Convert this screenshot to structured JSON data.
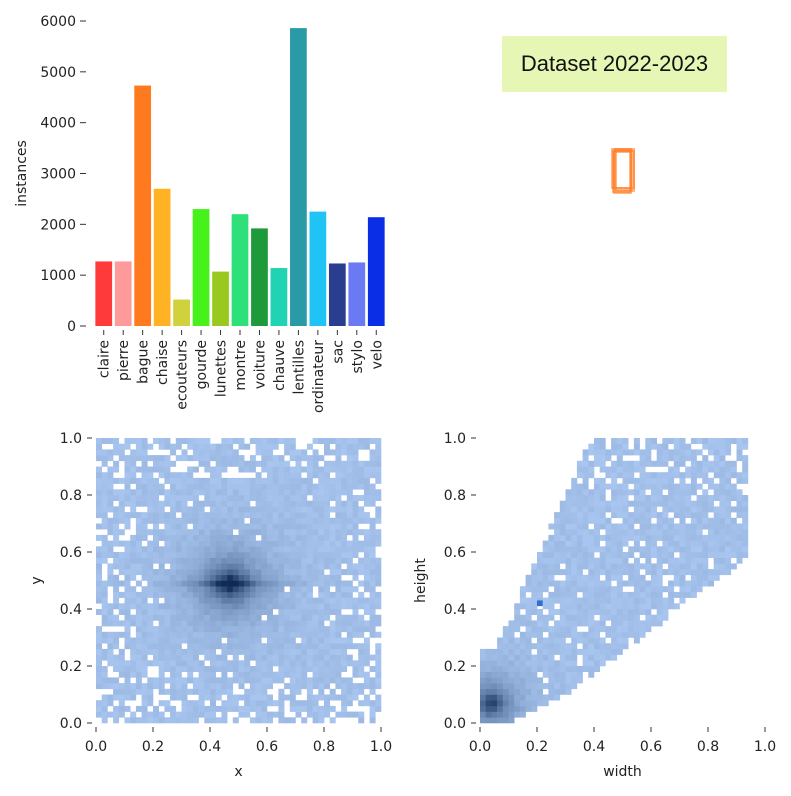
{
  "badge": {
    "title": "Dataset 2022-2023"
  },
  "chart_data": [
    {
      "type": "bar",
      "title": "",
      "xlabel": "",
      "ylabel": "instances",
      "ylim": [
        0,
        6000
      ],
      "yticks": [
        0,
        1000,
        2000,
        3000,
        4000,
        5000,
        6000
      ],
      "categories": [
        "claire",
        "pierre",
        "bague",
        "chaise",
        "ecouteurs",
        "gourde",
        "lunettes",
        "montre",
        "voiture",
        "chauve",
        "lentilles",
        "ordinateur",
        "sac",
        "stylo",
        "velo"
      ],
      "values": [
        1270,
        1270,
        4730,
        2700,
        520,
        2300,
        1070,
        2200,
        1920,
        1140,
        5860,
        2250,
        1230,
        1250,
        2140
      ],
      "colors": [
        "#ff3a3a",
        "#ff9a9a",
        "#ff7a1f",
        "#ffb324",
        "#cfd23c",
        "#47f21c",
        "#99c91e",
        "#2ee07a",
        "#1f9a3a",
        "#1fd3b3",
        "#2a9aa6",
        "#1fc3f5",
        "#2a3d8f",
        "#6a7af5",
        "#0a2ee6"
      ]
    },
    {
      "type": "heatmap",
      "title": "",
      "xlabel": "x",
      "ylabel": "y",
      "xlim": [
        0.0,
        1.0
      ],
      "ylim": [
        0.0,
        1.0
      ],
      "xticks": [
        "0.0",
        "0.2",
        "0.4",
        "0.6",
        "0.8",
        "1.0"
      ],
      "yticks": [
        "0.0",
        "0.2",
        "0.4",
        "0.6",
        "0.8",
        "1.0"
      ],
      "density_peak": [
        0.47,
        0.49
      ],
      "base_color": "#a8c6f0",
      "peak_color": "#0e2a55"
    },
    {
      "type": "heatmap",
      "title": "",
      "xlabel": "width",
      "ylabel": "height",
      "xlim": [
        0.0,
        1.0
      ],
      "ylim": [
        0.0,
        1.0
      ],
      "xticks": [
        "0.0",
        "0.2",
        "0.4",
        "0.6",
        "0.8",
        "1.0"
      ],
      "yticks": [
        "0.0",
        "0.2",
        "0.4",
        "0.6",
        "0.8",
        "1.0"
      ],
      "density_peak": [
        0.04,
        0.07
      ],
      "base_color": "#a8c6f0",
      "peak_color": "#0e2a55"
    },
    {
      "type": "scatter",
      "title": "",
      "xlabel": "",
      "ylabel": "",
      "description_mark": "orange box outlines",
      "color": "#ff7a1f"
    }
  ]
}
